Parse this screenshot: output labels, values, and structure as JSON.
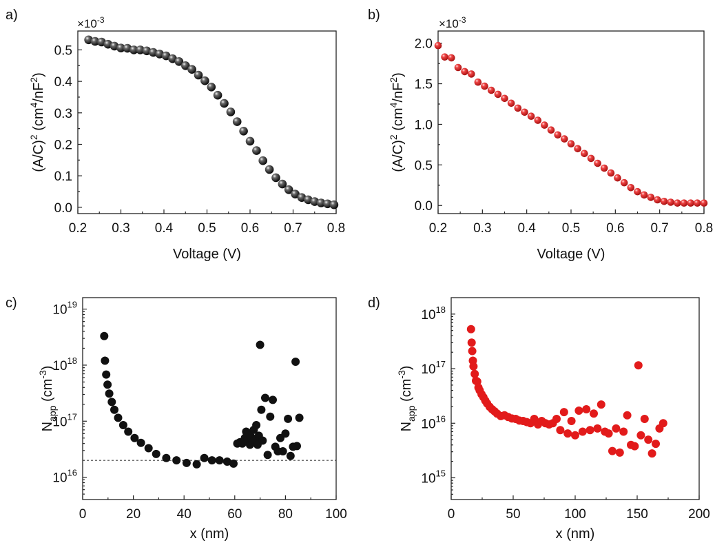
{
  "chart_data": [
    {
      "panel_label": "a)",
      "type": "scatter",
      "multiplier_label": "×10",
      "multiplier_exp": "-3",
      "xlabel": "Voltage (V)",
      "ylabel_parts": [
        "(A/C)",
        "2",
        " (cm",
        "4",
        "/nF",
        "2",
        ")"
      ],
      "xlim": [
        0.2,
        0.8
      ],
      "ylim": [
        -0.02,
        0.56
      ],
      "xticks": [
        0.2,
        0.3,
        0.4,
        0.5,
        0.6,
        0.7,
        0.8
      ],
      "xtick_labels": [
        "0.2",
        "0.3",
        "0.4",
        "0.5",
        "0.6",
        "0.7",
        "0.8"
      ],
      "yticks": [
        0.0,
        0.1,
        0.2,
        0.3,
        0.4,
        0.5
      ],
      "ytick_labels": [
        "0.0",
        "0.1",
        "0.2",
        "0.3",
        "0.4",
        "0.5"
      ],
      "color": "#111111",
      "marker": "sphere",
      "x": [
        0.225,
        0.24,
        0.255,
        0.27,
        0.285,
        0.3,
        0.315,
        0.33,
        0.345,
        0.36,
        0.375,
        0.39,
        0.405,
        0.42,
        0.435,
        0.45,
        0.465,
        0.48,
        0.495,
        0.51,
        0.525,
        0.54,
        0.555,
        0.57,
        0.585,
        0.6,
        0.615,
        0.63,
        0.645,
        0.66,
        0.675,
        0.69,
        0.705,
        0.72,
        0.735,
        0.75,
        0.765,
        0.78,
        0.795
      ],
      "y": [
        0.532,
        0.527,
        0.525,
        0.518,
        0.512,
        0.506,
        0.505,
        0.5,
        0.5,
        0.497,
        0.492,
        0.487,
        0.481,
        0.472,
        0.463,
        0.45,
        0.438,
        0.42,
        0.402,
        0.382,
        0.356,
        0.33,
        0.303,
        0.272,
        0.242,
        0.21,
        0.18,
        0.148,
        0.12,
        0.094,
        0.074,
        0.056,
        0.042,
        0.031,
        0.024,
        0.018,
        0.014,
        0.011,
        0.008
      ]
    },
    {
      "panel_label": "b)",
      "type": "scatter",
      "multiplier_label": "×10",
      "multiplier_exp": "-3",
      "xlabel": "Voltage (V)",
      "ylabel_parts": [
        "(A/C)",
        "2",
        " (cm",
        "4",
        "/nF",
        "2",
        ")"
      ],
      "xlim": [
        0.2,
        0.8
      ],
      "ylim": [
        -0.1,
        2.15
      ],
      "xticks": [
        0.2,
        0.3,
        0.4,
        0.5,
        0.6,
        0.7,
        0.8
      ],
      "xtick_labels": [
        "0.2",
        "0.3",
        "0.4",
        "0.5",
        "0.6",
        "0.7",
        "0.8"
      ],
      "yticks": [
        0.0,
        0.5,
        1.0,
        1.5,
        2.0
      ],
      "ytick_labels": [
        "0.0",
        "0.5",
        "1.0",
        "1.5",
        "2.0"
      ],
      "color": "#e21b1b",
      "marker": "sphere",
      "x": [
        0.2,
        0.215,
        0.23,
        0.245,
        0.26,
        0.275,
        0.29,
        0.305,
        0.32,
        0.335,
        0.35,
        0.365,
        0.38,
        0.395,
        0.41,
        0.425,
        0.44,
        0.455,
        0.47,
        0.485,
        0.5,
        0.515,
        0.53,
        0.545,
        0.56,
        0.575,
        0.59,
        0.605,
        0.62,
        0.635,
        0.65,
        0.665,
        0.68,
        0.695,
        0.71,
        0.725,
        0.74,
        0.755,
        0.77,
        0.785,
        0.8
      ],
      "y": [
        1.97,
        1.83,
        1.82,
        1.7,
        1.65,
        1.62,
        1.52,
        1.47,
        1.42,
        1.37,
        1.32,
        1.26,
        1.2,
        1.15,
        1.1,
        1.05,
        0.99,
        0.93,
        0.87,
        0.82,
        0.76,
        0.7,
        0.64,
        0.58,
        0.52,
        0.46,
        0.4,
        0.34,
        0.28,
        0.22,
        0.17,
        0.13,
        0.1,
        0.07,
        0.05,
        0.04,
        0.03,
        0.03,
        0.03,
        0.03,
        0.03
      ]
    },
    {
      "panel_label": "c)",
      "type": "scatter",
      "xlabel": "x (nm)",
      "ylabel_parts": [
        "N",
        "app",
        " (cm",
        "-3",
        ")"
      ],
      "yscale": "log",
      "xlim": [
        0,
        100
      ],
      "ylim": [
        4000000000000000.0,
        1.6e+19
      ],
      "xticks": [
        0,
        20,
        40,
        60,
        80,
        100
      ],
      "xtick_labels": [
        "0",
        "20",
        "40",
        "60",
        "80",
        "100"
      ],
      "yticks": [
        1e+16,
        1e+17,
        1e+18,
        1e+19
      ],
      "ytick_base": "10",
      "ytick_exps": [
        "16",
        "17",
        "18",
        "19"
      ],
      "reference_line": {
        "y": 2e+16,
        "style": "dotted"
      },
      "color": "#111111",
      "marker": "dot",
      "x": [
        8.5,
        8.8,
        9.3,
        9.8,
        10.5,
        11.5,
        12.5,
        14,
        16,
        18,
        20.5,
        23,
        26,
        29,
        33,
        37,
        41,
        45,
        48,
        51,
        54,
        57,
        59.5,
        61,
        62,
        63,
        64,
        64.5,
        65,
        65.5,
        66,
        66.5,
        67,
        67.5,
        68,
        68.5,
        69,
        69.5,
        70,
        70.5,
        71,
        72,
        73,
        74,
        75,
        76,
        77,
        78,
        79,
        80,
        81,
        82,
        83,
        84,
        84.5,
        85.5
      ],
      "y": [
        3.3e+18,
        1.2e+18,
        6.8e+17,
        4.5e+17,
        3.1e+17,
        2.2e+17,
        1.6e+17,
        1.15e+17,
        8.5e+16,
        6.5e+16,
        5e+16,
        4.1e+16,
        3.3e+16,
        2.6e+16,
        2.2e+16,
        2e+16,
        1.8e+16,
        1.7e+16,
        2.2e+16,
        2e+16,
        2e+16,
        1.9e+16,
        1.75e+16,
        4e+16,
        4.2e+16,
        4e+16,
        5e+16,
        6.5e+16,
        4.5e+16,
        6e+16,
        3.8e+16,
        5.2e+16,
        4.2e+16,
        7e+16,
        4.5e+16,
        8.5e+16,
        3.8e+16,
        5.5e+16,
        2.3e+18,
        1.6e+17,
        4.5e+16,
        2.6e+17,
        2.5e+16,
        1.2e+17,
        2.4e+17,
        3.5e+16,
        2.9e+16,
        5e+16,
        2.9e+16,
        6e+16,
        1.1e+17,
        2.4e+16,
        3.5e+16,
        1.15e+18,
        3.6e+16,
        1.15e+17
      ]
    },
    {
      "panel_label": "d)",
      "type": "scatter",
      "xlabel": "x (nm)",
      "ylabel_parts": [
        "N",
        "app",
        " (cm",
        "-3",
        ")"
      ],
      "yscale": "log",
      "xlim": [
        0,
        200
      ],
      "ylim": [
        400000000000000.0,
        2e+18
      ],
      "xticks": [
        0,
        50,
        100,
        150,
        200
      ],
      "xtick_labels": [
        "0",
        "50",
        "100",
        "150",
        "200"
      ],
      "yticks": [
        1000000000000000.0,
        1e+16,
        1e+17,
        1e+18
      ],
      "ytick_base": "10",
      "ytick_exps": [
        "15",
        "16",
        "17",
        "18"
      ],
      "color": "#e21b1b",
      "marker": "dot",
      "x": [
        16,
        16.5,
        17,
        17.5,
        18,
        19,
        20,
        21,
        22,
        23,
        24.5,
        26,
        27.5,
        29,
        31,
        33,
        35,
        37,
        40,
        43,
        46,
        49,
        52,
        55,
        58,
        61,
        64,
        67,
        70,
        73,
        76,
        79,
        82,
        85,
        88,
        91,
        94,
        97,
        100,
        103,
        106,
        109,
        112,
        115,
        118,
        121,
        124,
        127,
        130,
        133,
        136,
        139,
        142,
        145,
        148,
        151,
        153,
        156,
        159,
        162,
        165,
        168,
        171
      ],
      "y": [
        5.3e+17,
        3e+17,
        2.1e+17,
        1.4e+17,
        1.1e+17,
        8e+16,
        6e+16,
        5.8e+16,
        4.5e+16,
        4e+16,
        3.4e+16,
        3e+16,
        2.6e+16,
        2.3e+16,
        2e+16,
        1.8e+16,
        1.65e+16,
        1.5e+16,
        1.35e+16,
        1.4e+16,
        1.3e+16,
        1.22e+16,
        1.2e+16,
        1.12e+16,
        1.1e+16,
        1.05e+16,
        1e+16,
        1.2e+16,
        9500000000000000.0,
        1.1e+16,
        1e+16,
        9500000000000000.0,
        1e+16,
        1.2e+16,
        7500000000000000.0,
        1.6e+16,
        6500000000000000.0,
        1.1e+16,
        6000000000000000.0,
        1.7e+16,
        7000000000000000.0,
        1.8e+16,
        7500000000000000.0,
        1.5e+16,
        8000000000000000.0,
        2.2e+16,
        7000000000000000.0,
        6500000000000000.0,
        3100000000000000.0,
        8000000000000000.0,
        2900000000000000.0,
        7000000000000000.0,
        1.4e+16,
        4000000000000000.0,
        3800000000000000.0,
        1.15e+17,
        6000000000000000.0,
        1.2e+16,
        5000000000000000.0,
        2800000000000000.0,
        4200000000000000.0,
        8000000000000000.0,
        1e+16
      ]
    }
  ]
}
